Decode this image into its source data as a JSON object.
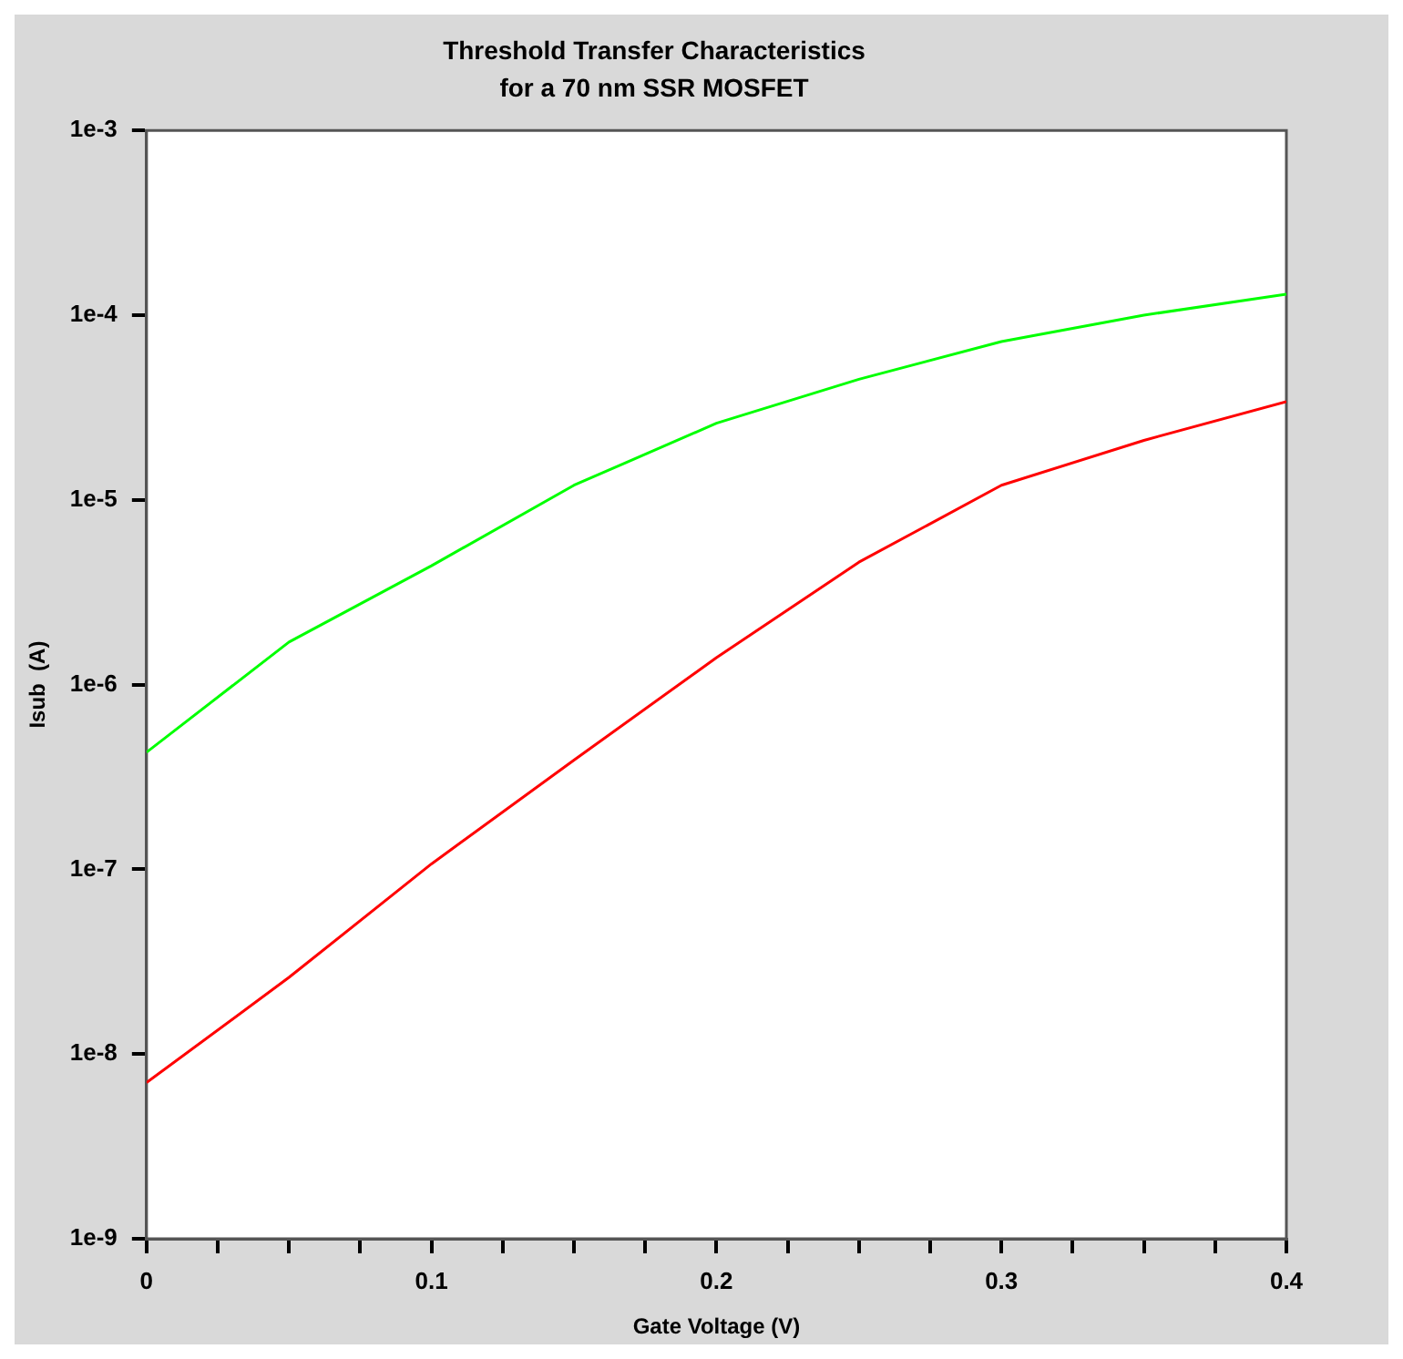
{
  "chart_data": {
    "type": "line",
    "title": "Threshold Transfer Characteristics",
    "subtitle": "for a 70 nm SSR MOSFET",
    "xlabel": "Gate Voltage (V)",
    "ylabel": "Isub  (A)",
    "x": [
      0,
      0.05,
      0.1,
      0.15,
      0.2,
      0.25,
      0.3,
      0.35,
      0.4
    ],
    "series": [
      {
        "color": "#00ff00",
        "values": [
          4.3e-07,
          1.7e-06,
          4.4e-06,
          1.2e-05,
          2.6e-05,
          4.5e-05,
          7.2e-05,
          0.0001,
          0.00013
        ]
      },
      {
        "color": "#ff0000",
        "values": [
          7e-09,
          2.6e-08,
          1.07e-07,
          3.9e-07,
          1.4e-06,
          4.6e-06,
          1.2e-05,
          2.1e-05,
          3.4e-05
        ]
      }
    ],
    "log": "y",
    "grid": false,
    "legend": false,
    "marker": "none",
    "line_style": "solid",
    "xlim": [
      0,
      0.4
    ],
    "ylim": [
      1e-09,
      0.001
    ],
    "xticks": [
      0,
      {
        "value": 0.025,
        "label": null
      },
      {
        "value": 0.05,
        "label": null
      },
      {
        "value": 0.075,
        "label": null
      },
      0.1,
      {
        "value": 0.125,
        "label": null
      },
      {
        "value": 0.15,
        "label": null
      },
      {
        "value": 0.175,
        "label": null
      },
      0.2,
      {
        "value": 0.225,
        "label": null
      },
      {
        "value": 0.25,
        "label": null
      },
      {
        "value": 0.275,
        "label": null
      },
      0.3,
      {
        "value": 0.325,
        "label": null
      },
      {
        "value": 0.35,
        "label": null
      },
      {
        "value": 0.375,
        "label": null
      },
      0.4
    ],
    "yticks": [
      {
        "value": 1e-09,
        "label": "1e-9"
      },
      {
        "value": 1e-08,
        "label": "1e-8"
      },
      {
        "value": 1e-07,
        "label": "1e-7"
      },
      {
        "value": 1e-06,
        "label": "1e-6"
      },
      {
        "value": 1e-05,
        "label": "1e-5"
      },
      {
        "value": 0.0001,
        "label": "1e-4"
      },
      {
        "value": 0.001,
        "label": "1e-3"
      }
    ]
  }
}
